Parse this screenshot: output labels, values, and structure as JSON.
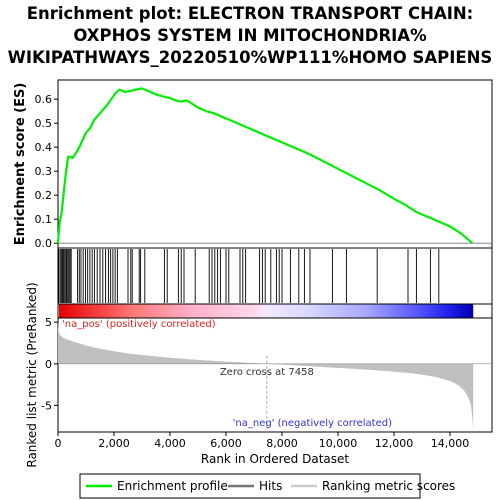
{
  "title_lines": [
    "Enrichment plot: ELECTRON TRANSPORT CHAIN:",
    "OXPHOS SYSTEM IN MITOCHONDRIA%",
    "WIKIPATHWAYS_20220510%WP111%HOMO SAPIENS"
  ],
  "chart_data": [
    {
      "type": "line",
      "panel": "enrichment",
      "ylabel": "Enrichment score (ES)",
      "ylim": [
        -0.02,
        0.68
      ],
      "xlim": [
        0,
        15500
      ],
      "yticks": [
        "0.0",
        "0.1",
        "0.2",
        "0.3",
        "0.4",
        "0.5",
        "0.6"
      ],
      "grid": false,
      "series": [
        {
          "name": "Enrichment profile",
          "color": "#00ee00",
          "x": [
            0,
            60,
            120,
            180,
            240,
            300,
            360,
            420,
            520,
            640,
            760,
            880,
            1000,
            1150,
            1300,
            1450,
            1600,
            1750,
            1900,
            2050,
            2200,
            2400,
            2600,
            2800,
            3000,
            3200,
            3500,
            3800,
            4000,
            4200,
            4400,
            4600,
            4800,
            5000,
            5300,
            5600,
            5900,
            6200,
            6600,
            7000,
            7400,
            7800,
            8200,
            8600,
            9000,
            9500,
            10000,
            10500,
            11000,
            11500,
            12000,
            12400,
            12800,
            13200,
            13600,
            14000,
            14400,
            14800
          ],
          "y": [
            0.0,
            0.09,
            0.12,
            0.18,
            0.25,
            0.31,
            0.36,
            0.36,
            0.355,
            0.375,
            0.4,
            0.43,
            0.46,
            0.48,
            0.515,
            0.535,
            0.555,
            0.575,
            0.6,
            0.625,
            0.64,
            0.63,
            0.635,
            0.64,
            0.645,
            0.635,
            0.62,
            0.61,
            0.605,
            0.595,
            0.59,
            0.595,
            0.58,
            0.565,
            0.55,
            0.54,
            0.525,
            0.51,
            0.49,
            0.47,
            0.45,
            0.43,
            0.41,
            0.39,
            0.37,
            0.34,
            0.31,
            0.28,
            0.25,
            0.22,
            0.185,
            0.16,
            0.13,
            0.11,
            0.09,
            0.07,
            0.04,
            0.0
          ]
        }
      ]
    },
    {
      "type": "scatter",
      "panel": "hits",
      "series": [
        {
          "name": "Hits",
          "color": "#000000",
          "x": [
            30,
            80,
            120,
            160,
            200,
            240,
            280,
            310,
            350,
            390,
            430,
            470,
            700,
            760,
            820,
            900,
            980,
            1060,
            1140,
            1220,
            1300,
            1400,
            1500,
            1600,
            1700,
            1800,
            1880,
            1960,
            2040,
            2120,
            2500,
            2600,
            2650,
            2900,
            2950,
            3100,
            3800,
            3900,
            4300,
            4400,
            4500,
            4900,
            5400,
            5500,
            5600,
            5700,
            5800,
            6000,
            6100,
            6500,
            6600,
            6700,
            7200,
            7300,
            7400,
            7600,
            7800,
            7900,
            8000,
            8300,
            8600,
            8800,
            9000,
            9800,
            10300,
            11400,
            12500,
            12800,
            13300,
            13600
          ]
        }
      ]
    },
    {
      "type": "area",
      "panel": "ranked",
      "ylabel": "Ranked list metric (PreRanked)",
      "xlabel": "Rank in Ordered Dataset",
      "ylim": [
        -8.2,
        5.5
      ],
      "xlim": [
        0,
        15500
      ],
      "yticks": [
        "-5",
        "0",
        "5"
      ],
      "xticks": [
        "0",
        "2,000",
        "4,000",
        "6,000",
        "8,000",
        "10,000",
        "12,000",
        "14,000"
      ],
      "zero_cross_label": "Zero cross at 7458",
      "zero_cross": 7458,
      "pos_label": "'na_pos' (positively correlated)",
      "neg_label": "'na_neg' (negatively correlated)",
      "series": [
        {
          "name": "Ranking metric scores",
          "color": "#c0c0c0",
          "x": [
            0,
            20,
            60,
            120,
            200,
            300,
            450,
            600,
            800,
            1000,
            1300,
            1600,
            2000,
            2500,
            3000,
            3500,
            4000,
            4500,
            5000,
            5500,
            6000,
            6500,
            7000,
            7458,
            8000,
            8500,
            9000,
            9500,
            10000,
            10500,
            11000,
            11500,
            12000,
            12500,
            13000,
            13500,
            13800,
            14100,
            14300,
            14500,
            14650,
            14750,
            14800,
            14830
          ],
          "y": [
            5.2,
            3.9,
            3.5,
            3.3,
            3.1,
            2.95,
            2.8,
            2.6,
            2.4,
            2.2,
            1.95,
            1.75,
            1.5,
            1.25,
            1.05,
            0.88,
            0.72,
            0.58,
            0.47,
            0.36,
            0.26,
            0.17,
            0.08,
            0.0,
            -0.1,
            -0.2,
            -0.3,
            -0.4,
            -0.5,
            -0.6,
            -0.7,
            -0.82,
            -0.95,
            -1.1,
            -1.3,
            -1.6,
            -1.85,
            -2.2,
            -2.6,
            -3.2,
            -4.0,
            -5.0,
            -6.5,
            -8.0
          ]
        }
      ]
    }
  ],
  "legend": {
    "items": [
      {
        "label": "Enrichment profile",
        "color": "#00ee00"
      },
      {
        "label": "Hits",
        "color": "#777777"
      },
      {
        "label": "Ranking metric scores",
        "color": "#cccccc"
      }
    ]
  }
}
